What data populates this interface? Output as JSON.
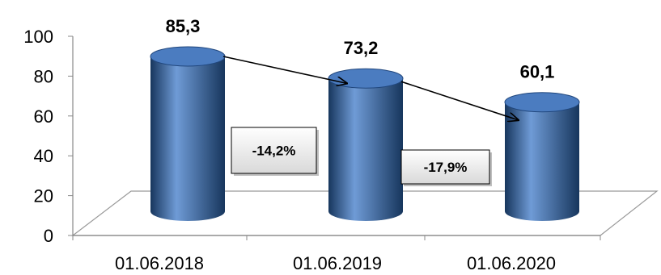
{
  "chart_data": {
    "type": "bar",
    "style": "3d-cylinder",
    "categories": [
      "01.06.2018",
      "01.06.2019",
      "01.06.2020"
    ],
    "values": [
      85.3,
      73.2,
      60.1
    ],
    "data_labels": [
      "85,3",
      "73,2",
      "60,1"
    ],
    "ylim": [
      0,
      100
    ],
    "yticks": [
      "0",
      "20",
      "40",
      "60",
      "80",
      "100"
    ],
    "changes": [
      "-14,2%",
      "-17,9%"
    ],
    "title": "",
    "xlabel": "",
    "ylabel": "",
    "grid": false,
    "colors": {
      "bar": "#2e5e9e",
      "bar_light": "#6f9bd6",
      "bar_dark": "#17365d",
      "top": "#4b7cc0"
    }
  }
}
